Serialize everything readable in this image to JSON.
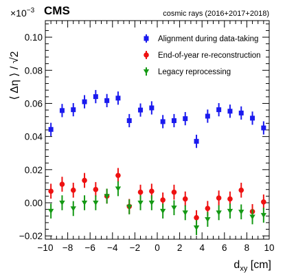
{
  "chart_data": {
    "type": "scatter",
    "experiment_label": "CMS",
    "annotation": "cosmic rays (2016+2017+2018)",
    "xlabel_main": "d",
    "xlabel_sub": "xy",
    "xlabel_unit": " [cm]",
    "ylabel": "⟨ Δη ⟩ / √2",
    "y_multiplier_base": "×10",
    "y_multiplier_exp": "−3",
    "xlim": [
      -10,
      10
    ],
    "ylim": [
      -0.022,
      0.11
    ],
    "xticks": [
      -10,
      -8,
      -6,
      -4,
      -2,
      0,
      2,
      4,
      6,
      8,
      10
    ],
    "xtick_labels": [
      "−10",
      "−8",
      "−6",
      "−4",
      "−2",
      "0",
      "2",
      "4",
      "6",
      "8",
      "10"
    ],
    "yticks": [
      -0.02,
      0,
      0.02,
      0.04,
      0.06,
      0.08,
      0.1
    ],
    "ytick_labels": [
      "−0.02",
      "0.00",
      "0.02",
      "0.04",
      "0.06",
      "0.08",
      "0.10"
    ],
    "grid": false,
    "legend_position": "top-right",
    "x": [
      -9.5,
      -8.5,
      -7.5,
      -6.5,
      -5.5,
      -4.5,
      -3.5,
      -2.5,
      -1.5,
      -0.5,
      0.5,
      1.5,
      2.5,
      3.5,
      4.5,
      5.5,
      6.5,
      7.5,
      8.5,
      9.5
    ],
    "series": [
      {
        "name": "Alignment during data-taking",
        "marker": "square",
        "color": "#1a1aee",
        "values": [
          0.0443,
          0.0557,
          0.0562,
          0.061,
          0.0641,
          0.0617,
          0.0632,
          0.0496,
          0.056,
          0.0573,
          0.049,
          0.0496,
          0.0508,
          0.0371,
          0.0523,
          0.0562,
          0.0553,
          0.0542,
          0.0511,
          0.0452
        ],
        "errors": [
          0.004,
          0.004,
          0.004,
          0.004,
          0.004,
          0.004,
          0.004,
          0.004,
          0.004,
          0.004,
          0.004,
          0.004,
          0.004,
          0.004,
          0.004,
          0.004,
          0.004,
          0.004,
          0.004,
          0.004
        ]
      },
      {
        "name": "End-of-year re-reconstruction",
        "marker": "circle",
        "color": "#ee1111",
        "values": [
          0.007,
          0.0112,
          0.0076,
          0.0135,
          0.008,
          0.004,
          0.0165,
          -0.0022,
          0.0064,
          0.007,
          0.0017,
          0.0064,
          0.0023,
          -0.009,
          -0.0034,
          0.0029,
          0.0023,
          0.0076,
          -0.0053,
          0.0005
        ],
        "errors": [
          0.0045,
          0.0045,
          0.0045,
          0.0045,
          0.0045,
          0.0045,
          0.0045,
          0.0045,
          0.0045,
          0.0045,
          0.0045,
          0.0045,
          0.0045,
          0.0045,
          0.0045,
          0.0045,
          0.0045,
          0.0045,
          0.0045,
          0.0045
        ]
      },
      {
        "name": "Legacy reprocessing",
        "marker": "triangle-down",
        "color": "#149914",
        "values": [
          -0.005,
          0.0,
          -0.0035,
          0.0,
          0.0,
          0.004,
          0.0085,
          -0.0025,
          0.0,
          0.0,
          -0.005,
          -0.003,
          -0.006,
          -0.015,
          -0.01,
          -0.006,
          -0.005,
          -0.0055,
          -0.0085,
          -0.0075
        ],
        "errors": [
          0.0045,
          0.0045,
          0.0045,
          0.0045,
          0.0045,
          0.0045,
          0.0045,
          0.0045,
          0.0045,
          0.0045,
          0.0045,
          0.0045,
          0.0045,
          0.0045,
          0.0045,
          0.0045,
          0.0045,
          0.0045,
          0.0045,
          0.0045
        ]
      }
    ]
  },
  "colors": {
    "alignment": "#1a1aee",
    "rereco": "#ee1111",
    "legacy": "#149914",
    "axis": "#000000"
  }
}
